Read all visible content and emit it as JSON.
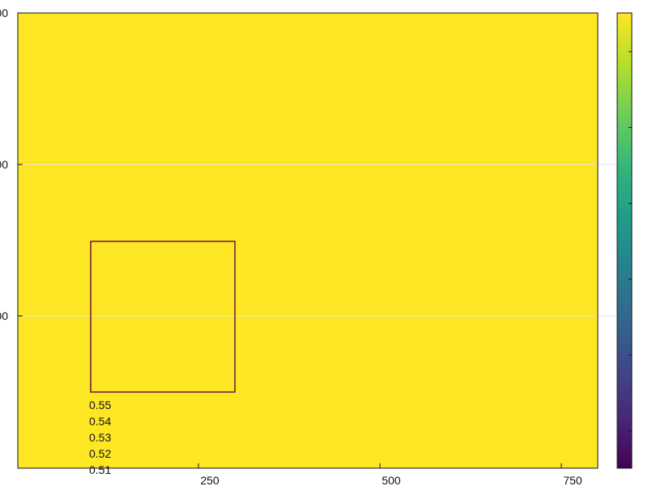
{
  "chart_data": {
    "type": "heatmap",
    "colormap": "viridis",
    "colors": {
      "fill": "#fde725",
      "colormap_low": "#440154",
      "colormap_mid": "#21918c",
      "colormap_high": "#fde725",
      "rect_outline": "#7a1f3d",
      "grid": "#e6e6e6",
      "axis": "#111111"
    },
    "grid": true,
    "x_ticks": [
      "250",
      "500",
      "750"
    ],
    "y_ticks": [
      "00",
      "00",
      "00"
    ],
    "colorbar": {
      "position": "right",
      "tick_count": 6
    },
    "overlay_rect": {
      "x0": 100,
      "x1": 300,
      "y0": 10,
      "y1": 60
    },
    "annotations": [
      "0.55",
      "0.54",
      "0.53",
      "0.52",
      "0.51"
    ]
  }
}
